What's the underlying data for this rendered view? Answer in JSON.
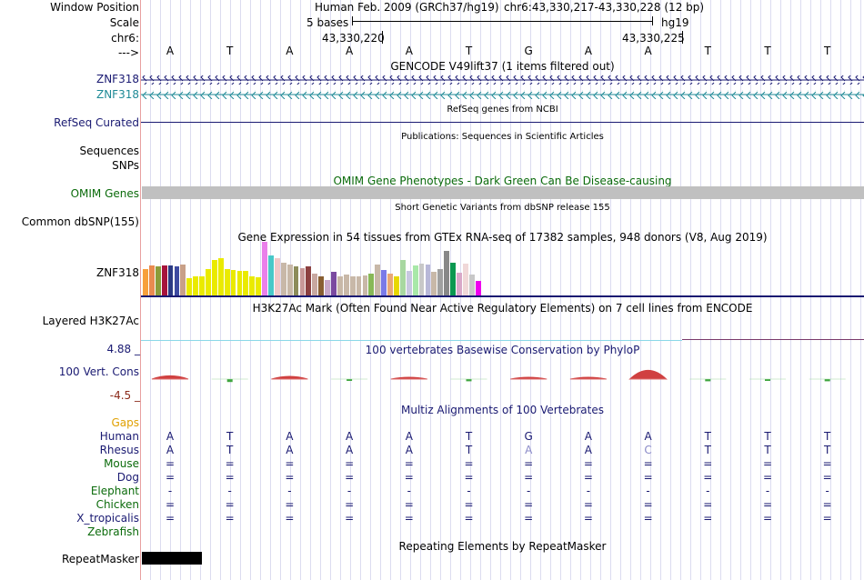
{
  "header": {
    "labels": {
      "window_position": "Window Position",
      "scale": "Scale",
      "chrom": "chr6:",
      "strand": "--->"
    },
    "assembly": "Human Feb. 2009 (GRCh37/hg19)",
    "position": "chr6:43,330,217-43,330,228 (12 bp)",
    "scale_text": "5 bases",
    "db": "hg19",
    "coord_left": "43,330,220",
    "coord_right": "43,330,225"
  },
  "bases": [
    "A",
    "T",
    "A",
    "A",
    "A",
    "T",
    "G",
    "A",
    "A",
    "T",
    "T",
    "T"
  ],
  "tracks": {
    "gencode": {
      "title": "GENCODE V49lift37 (1 items filtered out)",
      "gene1": "ZNF318",
      "gene2": "ZNF318"
    },
    "refseq": {
      "label": "RefSeq Curated",
      "title": "RefSeq genes from NCBI"
    },
    "publications": {
      "title": "Publications: Sequences in Scientific Articles"
    },
    "sequences": {
      "label": "Sequences"
    },
    "snps": {
      "label": "SNPs"
    },
    "omim": {
      "title": "OMIM Gene Phenotypes - Dark Green Can Be Disease-causing",
      "label": "OMIM Genes"
    },
    "dbsnp": {
      "title": "Short Genetic Variants from dbSNP release 155",
      "label": "Common dbSNP(155)"
    },
    "gtex": {
      "title": "Gene Expression in 54 tissues from GTEx RNA-seq of 17382 samples, 948 donors (V8, Aug 2019)",
      "gene": "ZNF318",
      "tissue_values": [
        30,
        34,
        33,
        34,
        34,
        33,
        35,
        20,
        22,
        22,
        30,
        40,
        42,
        30,
        29,
        28,
        28,
        22,
        21,
        60,
        45,
        42,
        37,
        35,
        33,
        31,
        33,
        25,
        22,
        18,
        27,
        22,
        24,
        22,
        22,
        23,
        25,
        35,
        29,
        25,
        22,
        40,
        28,
        34,
        36,
        35,
        27,
        30,
        50,
        37,
        26,
        36,
        24,
        17
      ],
      "tissue_colors": [
        "#f7a03c",
        "#e98b50",
        "#8c9c39",
        "#a6133c",
        "#2b3a84",
        "#3d4aa0",
        "#c8a088",
        "#eaea00",
        "#eaea00",
        "#eaea00",
        "#eaea00",
        "#eaea00",
        "#eaea00",
        "#eaea00",
        "#eaea00",
        "#eaea00",
        "#eaea00",
        "#eaea00",
        "#eaea00",
        "#ea80ea",
        "#48c8c8",
        "#f0c8c8",
        "#c8b8a8",
        "#c8b8a8",
        "#8c8c5a",
        "#c89898",
        "#8c4040",
        "#c8a8a0",
        "#885e32",
        "#c8a8c8",
        "#7a4aa0",
        "#c8b8a8",
        "#c8b8a8",
        "#c8b8a8",
        "#c8b8a8",
        "#c8b8a8",
        "#88b858",
        "#c8b8a8",
        "#7a7ae8",
        "#e8a878",
        "#e8d800",
        "#a8d8a0",
        "#c8c8e0",
        "#a8e8a8",
        "#c8c8c8",
        "#b8b8d8",
        "#c8b8a8",
        "#a0a0a0",
        "#888888",
        "#0b9850",
        "#d8a8c8",
        "#f0d8d8",
        "#c8c8c8",
        "#ee00ee"
      ]
    },
    "h3k27ac": {
      "title": "H3K27Ac Mark (Often Found Near Active Regulatory Elements) on 7 cell lines from ENCODE",
      "label": "Layered H3K27Ac"
    },
    "phylop": {
      "title": "100 vertebrates Basewise Conservation by PhyloP",
      "label": "100 Vert. Cons",
      "max_label": "4.88 _",
      "min_label": "-4.5 _",
      "scores": [
        0.6,
        -0.4,
        0.5,
        -0.1,
        0.3,
        -0.3,
        0.1,
        0.1,
        1.6,
        -0.3,
        -0.2,
        -0.3
      ]
    },
    "multiz": {
      "title": "Multiz Alignments of 100 Vertebrates",
      "gaps_label": "Gaps",
      "species": [
        {
          "name": "Human",
          "row": [
            "A",
            "T",
            "A",
            "A",
            "A",
            "T",
            "G",
            "A",
            "A",
            "T",
            "T",
            "T"
          ]
        },
        {
          "name": "Rhesus",
          "row": [
            "A",
            "T",
            "A",
            "A",
            "A",
            "T",
            "A",
            "A",
            "C",
            "T",
            "T",
            "T"
          ]
        },
        {
          "name": "Mouse",
          "row": [
            "=",
            "=",
            "=",
            "=",
            "=",
            "=",
            "=",
            "=",
            "=",
            "=",
            "=",
            "="
          ]
        },
        {
          "name": "Dog",
          "row": [
            "=",
            "=",
            "=",
            "=",
            "=",
            "=",
            "=",
            "=",
            "=",
            "=",
            "=",
            "="
          ]
        },
        {
          "name": "Elephant",
          "row": [
            "-",
            "-",
            "-",
            "-",
            "-",
            "-",
            "-",
            "-",
            "-",
            "-",
            "-",
            "-"
          ]
        },
        {
          "name": "Chicken",
          "row": [
            "=",
            "=",
            "=",
            "=",
            "=",
            "=",
            "=",
            "=",
            "=",
            "=",
            "=",
            "="
          ]
        },
        {
          "name": "X_tropicalis",
          "row": [
            "=",
            "=",
            "=",
            "=",
            "=",
            "=",
            "=",
            "=",
            "=",
            "=",
            "=",
            "="
          ]
        },
        {
          "name": "Zebrafish",
          "row": [
            "",
            "",
            "",
            "",
            "",
            "",
            "",
            "",
            "",
            "",
            "",
            ""
          ]
        }
      ]
    },
    "repeatmasker": {
      "title": "Repeating Elements by RepeatMasker",
      "label": "RepeatMasker"
    }
  },
  "colors": {
    "navy": "#1a1a72",
    "green": "#0b6b0b",
    "gaps": "#e0a000",
    "teal": "#1f8a96",
    "phylop_pos": "#d04040",
    "phylop_neg": "#3fa53f"
  }
}
